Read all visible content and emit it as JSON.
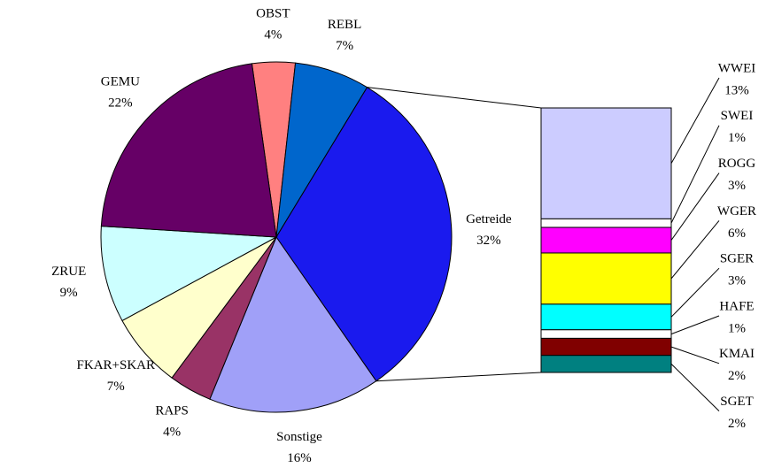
{
  "chart_data": [
    {
      "type": "pie",
      "categories": [
        "OBST",
        "REBL",
        "Getreide",
        "Sonstige",
        "RAPS",
        "FKAR+SKAR",
        "ZRUE",
        "GEMU"
      ],
      "values": [
        4,
        7,
        32,
        16,
        4,
        7,
        9,
        22
      ],
      "value_labels": [
        "4%",
        "7%",
        "32%",
        "16%",
        "4%",
        "7%",
        "9%",
        "22%"
      ],
      "colors": [
        "#ff8080",
        "#0066cc",
        "#1a1aee",
        "#a0a0f8",
        "#993366",
        "#ffffcc",
        "#ccffff",
        "#660066"
      ]
    },
    {
      "type": "stacked-bar",
      "categories": [
        "WWEI",
        "SWEI",
        "ROGG",
        "WGER",
        "SGER",
        "HAFE",
        "KMAI",
        "SGET"
      ],
      "values": [
        13,
        1,
        3,
        6,
        3,
        1,
        2,
        2
      ],
      "value_labels": [
        "13%",
        "1%",
        "3%",
        "6%",
        "3%",
        "1%",
        "2%",
        "2%"
      ],
      "colors": [
        "#ccccff",
        "#ffffff",
        "#ff00ff",
        "#ffff00",
        "#00ffff",
        "#ffffff",
        "#800000",
        "#008080"
      ]
    }
  ]
}
